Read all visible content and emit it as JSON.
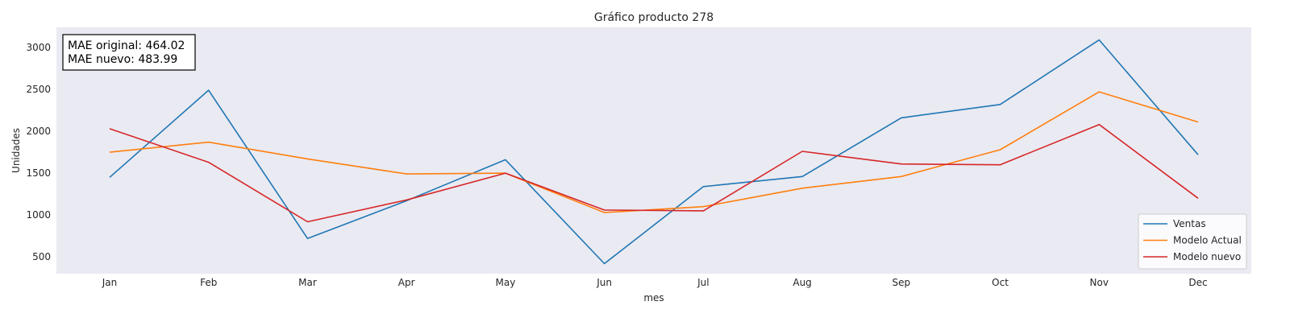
{
  "chart_data": {
    "type": "line",
    "title": "Gráfico producto 278",
    "xlabel": "mes",
    "ylabel": "Unidades",
    "categories": [
      "Jan",
      "Feb",
      "Mar",
      "Apr",
      "May",
      "Jun",
      "Jul",
      "Aug",
      "Sep",
      "Oct",
      "Nov",
      "Dec"
    ],
    "yticks": [
      500,
      1000,
      1500,
      2000,
      2500,
      3000
    ],
    "ylim": [
      300,
      3240
    ],
    "grid": false,
    "legend_position": "bottom-right",
    "series": [
      {
        "name": "Ventas",
        "color": "#1f77b4",
        "values": [
          1450,
          2490,
          720,
          1170,
          1660,
          420,
          1340,
          1460,
          2160,
          2320,
          3090,
          1720
        ]
      },
      {
        "name": "Modelo Actual",
        "color": "#ff7f0e",
        "values": [
          1750,
          1870,
          1670,
          1490,
          1500,
          1030,
          1100,
          1320,
          1460,
          1780,
          2470,
          2110
        ]
      },
      {
        "name": "Modelo nuevo",
        "color": "#d62728",
        "values": [
          2030,
          1630,
          920,
          1180,
          1500,
          1060,
          1050,
          1760,
          1610,
          1600,
          2080,
          1200
        ]
      }
    ],
    "annotation": {
      "line1": "MAE original: 464.02",
      "line2": "MAE nuevo: 483.99"
    },
    "background_color": "#eaeaf2"
  }
}
